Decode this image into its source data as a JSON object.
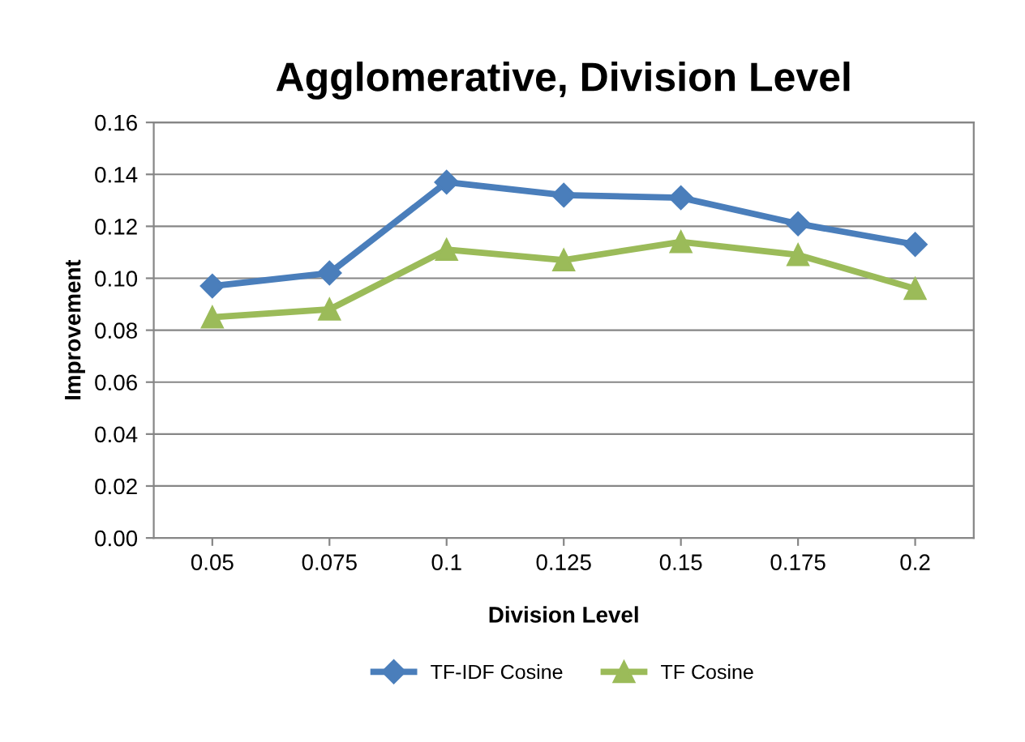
{
  "chart_data": {
    "type": "line",
    "title": "Agglomerative, Division Level",
    "xlabel": "Division Level",
    "ylabel": "Improvement",
    "categories": [
      "0.05",
      "0.075",
      "0.1",
      "0.125",
      "0.15",
      "0.175",
      "0.2"
    ],
    "series": [
      {
        "name": "TF-IDF Cosine",
        "color": "#4a7ebb",
        "marker": "diamond",
        "values": [
          0.097,
          0.102,
          0.137,
          0.132,
          0.131,
          0.121,
          0.113
        ]
      },
      {
        "name": "TF Cosine",
        "color": "#9bbb59",
        "marker": "triangle",
        "values": [
          0.085,
          0.088,
          0.111,
          0.107,
          0.114,
          0.109,
          0.096
        ]
      }
    ],
    "ylim": [
      0,
      0.16
    ],
    "yticks": [
      {
        "value": 0,
        "label": "0.00"
      },
      {
        "value": 0.02,
        "label": "0.02"
      },
      {
        "value": 0.04,
        "label": "0.04"
      },
      {
        "value": 0.06,
        "label": "0.06"
      },
      {
        "value": 0.08,
        "label": "0.08"
      },
      {
        "value": 0.1,
        "label": "0.10"
      },
      {
        "value": 0.12,
        "label": "0.12"
      },
      {
        "value": 0.14,
        "label": "0.14"
      },
      {
        "value": 0.16,
        "label": "0.16"
      }
    ],
    "grid": "y",
    "legend": "bottom",
    "line_style": "solid"
  }
}
